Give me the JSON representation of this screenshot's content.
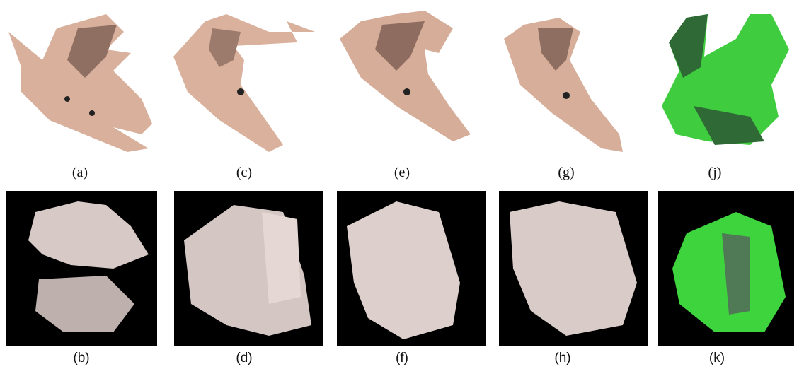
{
  "top_row": {
    "captions": [
      "(a)",
      "(c)",
      "(e)",
      "(g)",
      "(j)"
    ]
  },
  "bottom_row": {
    "captions": [
      "(b)",
      "(d)",
      "(f)",
      "(h)",
      "(k)"
    ]
  }
}
